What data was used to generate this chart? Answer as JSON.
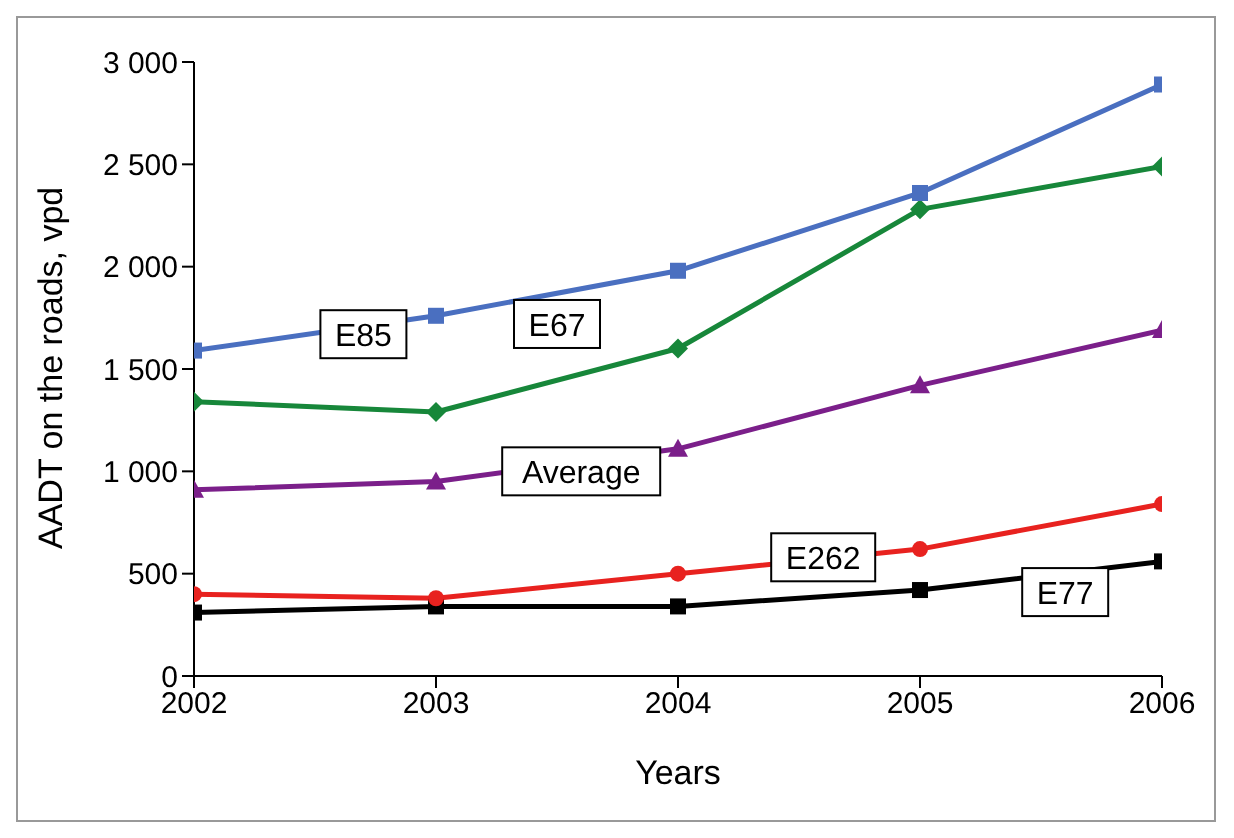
{
  "chart_data": {
    "type": "line",
    "xlabel": "Years",
    "ylabel": "AADT on the roads, vpd",
    "x": [
      2002,
      2003,
      2004,
      2005,
      2006
    ],
    "xlim": [
      2002,
      2006
    ],
    "xticks": [
      2002,
      2003,
      2004,
      2005,
      2006
    ],
    "ylim": [
      0,
      3000
    ],
    "yticks": [
      0,
      500,
      {
        "value": 1000,
        "label": "1 000"
      },
      {
        "value": 1500,
        "label": "1 500"
      },
      {
        "value": 2000,
        "label": "2 000"
      },
      {
        "value": 2500,
        "label": "2 500"
      },
      {
        "value": 3000,
        "label": "3 000"
      }
    ],
    "grid": false,
    "legend": false,
    "series": [
      {
        "color": "#4a6fc0",
        "marker": "square",
        "values": [
          1590,
          1760,
          1980,
          2360,
          2890
        ]
      },
      {
        "color": "#17873a",
        "marker": "diamond",
        "values": [
          1340,
          1290,
          1600,
          2280,
          2490
        ]
      },
      {
        "color": "#7b1f8a",
        "marker": "triangle",
        "values": [
          910,
          950,
          1110,
          1420,
          1690
        ]
      },
      {
        "color": "#e8221f",
        "marker": "circle",
        "values": [
          400,
          380,
          500,
          620,
          840
        ]
      },
      {
        "color": "#000000",
        "marker": "square",
        "values": [
          310,
          340,
          340,
          420,
          560
        ]
      }
    ],
    "annotations": [
      {
        "text": "E85",
        "x": 2002.7,
        "y": 1670
      },
      {
        "text": "E67",
        "x": 2003.5,
        "y": 1720
      },
      {
        "text": "Average",
        "x": 2003.6,
        "y": 1000
      },
      {
        "text": "E262",
        "x": 2004.6,
        "y": 580
      },
      {
        "text": "E77",
        "x": 2005.6,
        "y": 410
      }
    ]
  }
}
